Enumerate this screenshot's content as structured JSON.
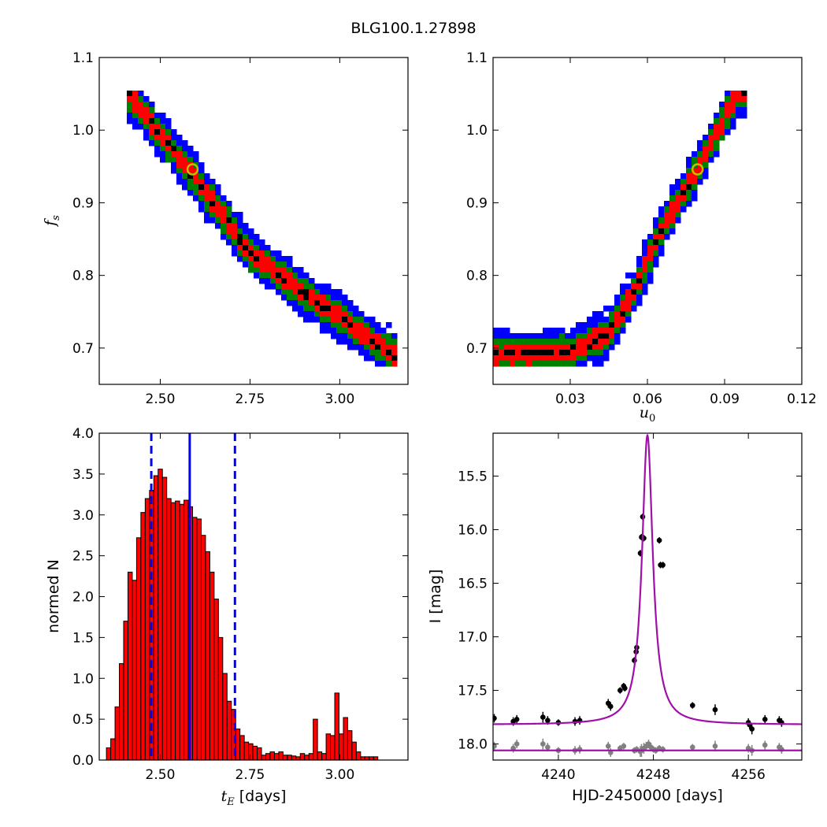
{
  "figure": {
    "title": "BLG100.1.27898"
  },
  "chart_data": [
    {
      "type": "heatmap",
      "panel": "top-left",
      "xlabel": "",
      "ylabel": "f_s",
      "xlim": [
        2.33,
        3.19
      ],
      "ylim": [
        0.65,
        1.1
      ],
      "xticks": [
        2.5,
        2.75,
        3.0
      ],
      "xtick_labels": [
        "2.50",
        "2.75",
        "3.00"
      ],
      "yticks": [
        0.7,
        0.8,
        0.9,
        1.0,
        1.1
      ],
      "ytick_labels": [
        "0.7",
        "0.8",
        "0.9",
        "1.0",
        "1.1"
      ],
      "levels": [
        {
          "name": "blue",
          "color": "#0000ff",
          "halfwidth": 0.032
        },
        {
          "name": "green",
          "color": "#008000",
          "halfwidth": 0.02
        },
        {
          "name": "red",
          "color": "#ff0000",
          "halfwidth": 0.012
        },
        {
          "name": "black",
          "color": "#000000",
          "halfwidth": 0.004
        }
      ],
      "ridge": [
        [
          2.41,
          1.05
        ],
        [
          2.58,
          0.945
        ],
        [
          2.75,
          0.83
        ],
        [
          2.9,
          0.775
        ],
        [
          3.05,
          0.725
        ],
        [
          3.15,
          0.69
        ]
      ],
      "best_fit": [
        2.59,
        0.946
      ],
      "marker_color": "#bfbf00"
    },
    {
      "type": "heatmap",
      "panel": "top-right",
      "xlabel": "u_0",
      "ylabel": "",
      "xlim": [
        0.0,
        0.12
      ],
      "ylim": [
        0.65,
        1.1
      ],
      "xticks": [
        0.03,
        0.06,
        0.09,
        0.12
      ],
      "xtick_labels": [
        "0.03",
        "0.06",
        "0.09",
        "0.12"
      ],
      "yticks": [
        0.7,
        0.8,
        0.9,
        1.0,
        1.1
      ],
      "ytick_labels": [
        "0.7",
        "0.8",
        "0.9",
        "1.0",
        "1.1"
      ],
      "levels": [
        {
          "name": "blue",
          "color": "#0000ff",
          "halfwidth": 0.032
        },
        {
          "name": "green",
          "color": "#008000",
          "halfwidth": 0.02
        },
        {
          "name": "red",
          "color": "#ff0000",
          "halfwidth": 0.012
        },
        {
          "name": "black",
          "color": "#000000",
          "halfwidth": 0.004
        }
      ],
      "ridge": [
        [
          0.0,
          0.69
        ],
        [
          0.03,
          0.695
        ],
        [
          0.045,
          0.72
        ],
        [
          0.055,
          0.78
        ],
        [
          0.065,
          0.86
        ],
        [
          0.08,
          0.95
        ],
        [
          0.095,
          1.05
        ]
      ],
      "best_fit": [
        0.0795,
        0.946
      ],
      "marker_color": "#bfbf00"
    },
    {
      "type": "bar",
      "panel": "bottom-left",
      "xlabel": "t_E [days]",
      "ylabel": "normed N",
      "xlim": [
        2.33,
        3.19
      ],
      "ylim": [
        0.0,
        4.0
      ],
      "xticks": [
        2.5,
        2.75,
        3.0
      ],
      "xtick_labels": [
        "2.50",
        "2.75",
        "3.00"
      ],
      "yticks": [
        0.0,
        0.5,
        1.0,
        1.5,
        2.0,
        2.5,
        3.0,
        3.5,
        4.0
      ],
      "ytick_labels": [
        "0.0",
        "0.5",
        "1.0",
        "1.5",
        "2.0",
        "2.5",
        "3.0",
        "3.5",
        "4.0"
      ],
      "bin_start": 2.35,
      "bin_width": 0.012,
      "values": [
        0.15,
        0.26,
        0.65,
        1.18,
        1.7,
        2.3,
        2.2,
        2.72,
        3.03,
        3.2,
        3.3,
        3.48,
        3.56,
        3.46,
        3.2,
        3.15,
        3.17,
        3.13,
        3.18,
        3.1,
        2.97,
        2.95,
        2.75,
        2.55,
        2.3,
        1.97,
        1.5,
        1.06,
        0.72,
        0.62,
        0.38,
        0.3,
        0.22,
        0.2,
        0.17,
        0.15,
        0.06,
        0.08,
        0.1,
        0.08,
        0.1,
        0.06,
        0.06,
        0.05,
        0.04,
        0.08,
        0.06,
        0.08,
        0.5,
        0.1,
        0.08,
        0.32,
        0.3,
        0.82,
        0.32,
        0.52,
        0.36,
        0.22,
        0.1,
        0.04,
        0.04,
        0.04,
        0.04
      ],
      "bar_color": "#ff0000",
      "edge_color": "#000000",
      "vlines": [
        {
          "x": 2.582,
          "style": "solid",
          "color": "#0000ff"
        },
        {
          "x": 2.475,
          "style": "dashed",
          "color": "#0000ff"
        },
        {
          "x": 2.708,
          "style": "dashed",
          "color": "#0000ff"
        }
      ]
    },
    {
      "type": "line",
      "panel": "bottom-right",
      "xlabel": "HJD-2450000 [days]",
      "ylabel": "I [mag]",
      "xlim": [
        4234.5,
        4260.5
      ],
      "ylim": [
        18.15,
        15.1
      ],
      "xticks": [
        4240,
        4248,
        4256
      ],
      "xtick_labels": [
        "4240",
        "4248",
        "4256"
      ],
      "yticks": [
        15.5,
        16.0,
        16.5,
        17.0,
        17.5,
        18.0
      ],
      "ytick_labels": [
        "15.5",
        "16.0",
        "16.5",
        "17.0",
        "17.5",
        "18.0"
      ],
      "model": {
        "t0": 4247.5,
        "baseline": 17.82,
        "peak": 15.12,
        "width": 0.55,
        "color": "#a010a8"
      },
      "residual_baseline": {
        "value": 18.06,
        "color": "#a010a8"
      },
      "series": [
        {
          "name": "",
          "color": "#000000",
          "x": [
            4234.6,
            4236.2,
            4236.5,
            4238.7,
            4239.1,
            4240.0,
            4241.4,
            4241.8,
            4244.2,
            4244.4,
            4245.2,
            4245.5,
            4245.6,
            4246.4,
            4246.55,
            4246.6,
            4246.9,
            4247.0,
            4247.1,
            4247.2,
            4248.5,
            4248.6,
            4248.8,
            4251.3,
            4253.2,
            4256.0,
            4256.1,
            4256.3,
            4257.4,
            4258.6,
            4258.8
          ],
          "y": [
            17.76,
            17.79,
            17.77,
            17.75,
            17.78,
            17.8,
            17.79,
            17.78,
            17.62,
            17.65,
            17.5,
            17.46,
            17.48,
            17.22,
            17.14,
            17.1,
            16.22,
            16.07,
            15.88,
            16.08,
            16.1,
            16.33,
            16.33,
            17.64,
            17.68,
            17.8,
            17.82,
            17.86,
            17.77,
            17.78,
            17.8
          ],
          "yerr": [
            0.04,
            0.04,
            0.04,
            0.05,
            0.04,
            0.03,
            0.04,
            0.04,
            0.04,
            0.04,
            0.03,
            0.03,
            0.03,
            0.03,
            0.03,
            0.03,
            0.03,
            0.03,
            0.03,
            0.03,
            0.03,
            0.03,
            0.03,
            0.03,
            0.05,
            0.04,
            0.04,
            0.05,
            0.04,
            0.04,
            0.04
          ]
        },
        {
          "name": "",
          "color": "#808080",
          "x": [
            4234.6,
            4236.2,
            4236.5,
            4238.7,
            4239.1,
            4240.0,
            4241.4,
            4241.8,
            4244.2,
            4244.4,
            4245.2,
            4245.5,
            4246.4,
            4246.6,
            4246.9,
            4247.0,
            4247.2,
            4247.4,
            4247.6,
            4247.8,
            4248.0,
            4248.2,
            4248.5,
            4248.8,
            4251.3,
            4253.2,
            4256.0,
            4256.3,
            4257.4,
            4258.6,
            4258.8
          ],
          "y": [
            18.02,
            18.04,
            18.0,
            18.0,
            18.03,
            18.06,
            18.06,
            18.05,
            18.02,
            18.08,
            18.04,
            18.02,
            18.06,
            18.05,
            18.07,
            18.06,
            18.04,
            18.02,
            18.0,
            18.03,
            18.05,
            18.06,
            18.04,
            18.05,
            18.03,
            18.02,
            18.04,
            18.06,
            18.01,
            18.03,
            18.05
          ],
          "yerr": [
            0.04,
            0.04,
            0.04,
            0.05,
            0.04,
            0.03,
            0.04,
            0.04,
            0.04,
            0.04,
            0.03,
            0.03,
            0.03,
            0.03,
            0.05,
            0.06,
            0.05,
            0.04,
            0.04,
            0.04,
            0.03,
            0.03,
            0.03,
            0.03,
            0.03,
            0.05,
            0.04,
            0.05,
            0.04,
            0.04,
            0.04
          ]
        }
      ]
    }
  ]
}
